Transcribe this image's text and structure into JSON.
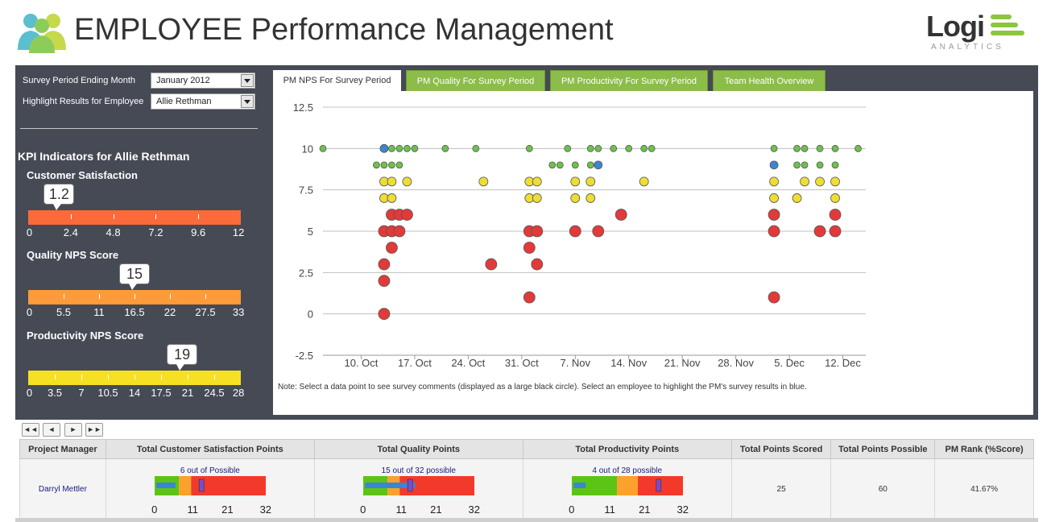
{
  "header": {
    "title": "EMPLOYEE Performance Management",
    "brand_name": "Logi",
    "brand_sub": "ANALYTICS"
  },
  "filters": {
    "period_label": "Survey Period Ending Month",
    "period_value": "January 2012",
    "employee_label": "Highlight Results for Employee",
    "employee_value": "Allie Rethman"
  },
  "kpi": {
    "title": "KPI Indicators for Allie Rethman",
    "gauges": [
      {
        "title": "Customer Satisfaction",
        "value": 1.2,
        "value_label": "1.2",
        "max": 12,
        "color": "#fc6a3a",
        "ticks": [
          "0",
          "2.4",
          "4.8",
          "7.2",
          "9.6",
          "12"
        ]
      },
      {
        "title": "Quality NPS Score",
        "value": 15,
        "value_label": "15",
        "max": 33,
        "color": "#fd9a3a",
        "ticks": [
          "0",
          "5.5",
          "11",
          "16.5",
          "22",
          "27.5",
          "33"
        ]
      },
      {
        "title": "Productivity NPS Score",
        "value": 19,
        "value_label": "19",
        "max": 28,
        "color": "#f6e024",
        "ticks": [
          "0",
          "3.5",
          "7",
          "10.5",
          "14",
          "17.5",
          "21",
          "24.5",
          "28"
        ]
      }
    ]
  },
  "tabs": [
    {
      "label": "PM NPS For Survey Period",
      "active": true
    },
    {
      "label": "PM Quality For Survey Period",
      "active": false
    },
    {
      "label": "PM Productivity For Survey Period",
      "active": false
    },
    {
      "label": "Team Health Overview",
      "active": false
    }
  ],
  "chart_note": "Note: Select a data point to see survey comments (displayed as a large black circle). Select an employee to highlight the PM's survey results in blue.",
  "chart_data": {
    "type": "scatter",
    "title": "",
    "xlabel": "",
    "ylabel": "",
    "x_tick_labels": [
      "10. Oct",
      "17. Oct",
      "24. Oct",
      "31. Oct",
      "7. Nov",
      "14. Nov",
      "21. Nov",
      "28. Nov",
      "5. Dec",
      "12. Dec"
    ],
    "y_tick_labels": [
      "12.5",
      "10",
      "7.5",
      "5",
      "2.5",
      "0",
      "-2.5"
    ],
    "xlim": [
      "2011-10-05",
      "2011-12-15"
    ],
    "ylim": [
      -2.5,
      12.5
    ],
    "grid": true,
    "colors": {
      "green": "#6cc24a",
      "blue": "#3a86d4",
      "yellow": "#eedd33",
      "red": "#e23a3a"
    },
    "points": [
      {
        "x": "2011-10-05",
        "y": 10,
        "c": "green"
      },
      {
        "x": "2011-10-13",
        "y": 10,
        "c": "blue"
      },
      {
        "x": "2011-10-14",
        "y": 10,
        "c": "green"
      },
      {
        "x": "2011-10-15",
        "y": 10,
        "c": "green"
      },
      {
        "x": "2011-10-16",
        "y": 10,
        "c": "green"
      },
      {
        "x": "2011-10-17",
        "y": 10,
        "c": "green"
      },
      {
        "x": "2011-10-21",
        "y": 10,
        "c": "green"
      },
      {
        "x": "2011-10-25",
        "y": 10,
        "c": "green"
      },
      {
        "x": "2011-11-01",
        "y": 10,
        "c": "green"
      },
      {
        "x": "2011-11-06",
        "y": 10,
        "c": "green"
      },
      {
        "x": "2011-11-09",
        "y": 10,
        "c": "green"
      },
      {
        "x": "2011-11-10",
        "y": 10,
        "c": "green"
      },
      {
        "x": "2011-11-12",
        "y": 10,
        "c": "green"
      },
      {
        "x": "2011-11-14",
        "y": 10,
        "c": "green"
      },
      {
        "x": "2011-11-16",
        "y": 10,
        "c": "green"
      },
      {
        "x": "2011-11-17",
        "y": 10,
        "c": "green"
      },
      {
        "x": "2011-12-03",
        "y": 10,
        "c": "green"
      },
      {
        "x": "2011-12-09",
        "y": 10,
        "c": "green"
      },
      {
        "x": "2011-12-06",
        "y": 10,
        "c": "green"
      },
      {
        "x": "2011-12-07",
        "y": 10,
        "c": "green"
      },
      {
        "x": "2011-12-11",
        "y": 10,
        "c": "green"
      },
      {
        "x": "2011-12-14",
        "y": 10,
        "c": "green"
      },
      {
        "x": "2011-10-12",
        "y": 9,
        "c": "green"
      },
      {
        "x": "2011-10-13",
        "y": 9,
        "c": "green"
      },
      {
        "x": "2011-10-14",
        "y": 9,
        "c": "green"
      },
      {
        "x": "2011-10-15",
        "y": 9,
        "c": "green"
      },
      {
        "x": "2011-11-04",
        "y": 9,
        "c": "green"
      },
      {
        "x": "2011-11-05",
        "y": 9,
        "c": "green"
      },
      {
        "x": "2011-11-07",
        "y": 9,
        "c": "green"
      },
      {
        "x": "2011-11-09",
        "y": 9,
        "c": "green"
      },
      {
        "x": "2011-11-10",
        "y": 9,
        "c": "blue"
      },
      {
        "x": "2011-12-03",
        "y": 9,
        "c": "blue"
      },
      {
        "x": "2011-12-06",
        "y": 9,
        "c": "green"
      },
      {
        "x": "2011-12-07",
        "y": 9,
        "c": "green"
      },
      {
        "x": "2011-12-09",
        "y": 9,
        "c": "green"
      },
      {
        "x": "2011-12-11",
        "y": 9,
        "c": "green"
      },
      {
        "x": "2011-10-13",
        "y": 8,
        "c": "yellow"
      },
      {
        "x": "2011-10-14",
        "y": 8,
        "c": "yellow"
      },
      {
        "x": "2011-10-16",
        "y": 8,
        "c": "yellow"
      },
      {
        "x": "2011-10-26",
        "y": 8,
        "c": "yellow"
      },
      {
        "x": "2011-11-01",
        "y": 8,
        "c": "yellow"
      },
      {
        "x": "2011-11-02",
        "y": 8,
        "c": "yellow"
      },
      {
        "x": "2011-11-07",
        "y": 8,
        "c": "yellow"
      },
      {
        "x": "2011-11-09",
        "y": 8,
        "c": "yellow"
      },
      {
        "x": "2011-11-16",
        "y": 8,
        "c": "yellow"
      },
      {
        "x": "2011-12-03",
        "y": 8,
        "c": "yellow"
      },
      {
        "x": "2011-12-07",
        "y": 8,
        "c": "yellow"
      },
      {
        "x": "2011-12-09",
        "y": 8,
        "c": "yellow"
      },
      {
        "x": "2011-12-11",
        "y": 8,
        "c": "yellow"
      },
      {
        "x": "2011-10-13",
        "y": 7,
        "c": "yellow"
      },
      {
        "x": "2011-10-14",
        "y": 7,
        "c": "yellow"
      },
      {
        "x": "2011-11-01",
        "y": 7,
        "c": "yellow"
      },
      {
        "x": "2011-11-02",
        "y": 7,
        "c": "yellow"
      },
      {
        "x": "2011-11-07",
        "y": 7,
        "c": "yellow"
      },
      {
        "x": "2011-11-09",
        "y": 7,
        "c": "yellow"
      },
      {
        "x": "2011-12-03",
        "y": 7,
        "c": "yellow"
      },
      {
        "x": "2011-12-06",
        "y": 7,
        "c": "yellow"
      },
      {
        "x": "2011-12-11",
        "y": 7,
        "c": "yellow"
      },
      {
        "x": "2011-10-14",
        "y": 6,
        "c": "red"
      },
      {
        "x": "2011-10-15",
        "y": 6,
        "c": "red"
      },
      {
        "x": "2011-10-16",
        "y": 6,
        "c": "red"
      },
      {
        "x": "2011-11-13",
        "y": 6,
        "c": "red"
      },
      {
        "x": "2011-12-03",
        "y": 6,
        "c": "red"
      },
      {
        "x": "2011-12-11",
        "y": 6,
        "c": "red"
      },
      {
        "x": "2011-10-13",
        "y": 5,
        "c": "red"
      },
      {
        "x": "2011-10-14",
        "y": 5,
        "c": "red"
      },
      {
        "x": "2011-10-15",
        "y": 5,
        "c": "red"
      },
      {
        "x": "2011-11-01",
        "y": 5,
        "c": "red"
      },
      {
        "x": "2011-11-02",
        "y": 5,
        "c": "red"
      },
      {
        "x": "2011-11-07",
        "y": 5,
        "c": "red"
      },
      {
        "x": "2011-11-10",
        "y": 5,
        "c": "red"
      },
      {
        "x": "2011-12-03",
        "y": 5,
        "c": "red"
      },
      {
        "x": "2011-12-09",
        "y": 5,
        "c": "red"
      },
      {
        "x": "2011-12-11",
        "y": 5,
        "c": "red"
      },
      {
        "x": "2011-10-14",
        "y": 4,
        "c": "red"
      },
      {
        "x": "2011-11-01",
        "y": 4,
        "c": "red"
      },
      {
        "x": "2011-10-13",
        "y": 3,
        "c": "red"
      },
      {
        "x": "2011-10-27",
        "y": 3,
        "c": "red"
      },
      {
        "x": "2011-11-02",
        "y": 3,
        "c": "red"
      },
      {
        "x": "2011-10-13",
        "y": 2,
        "c": "red"
      },
      {
        "x": "2011-11-01",
        "y": 1,
        "c": "red"
      },
      {
        "x": "2011-12-03",
        "y": 1,
        "c": "red"
      },
      {
        "x": "2011-10-13",
        "y": 0,
        "c": "red"
      }
    ]
  },
  "table": {
    "pager": [
      "◄◄",
      "◄",
      "►",
      "►►"
    ],
    "columns": [
      "Project Manager",
      "Total Customer Satisfaction Points",
      "Total Quality Points",
      "Total Productivity Points",
      "Total Points Scored",
      "Total Points Possible",
      "PM Rank (%Score)"
    ],
    "rows": [
      {
        "name": "Darryl Mettler",
        "cs_caption": "6 out of Possible",
        "cs_value": 6,
        "quality_caption": "15 out of 32 possible",
        "quality_value": 15,
        "prod_caption": "4 out of 28 possible",
        "prod_value": 4,
        "total_scored": "25",
        "total_possible": "60",
        "rank": "41.67%"
      }
    ],
    "bullet_axis": [
      "0",
      "11",
      "21",
      "32"
    ]
  }
}
